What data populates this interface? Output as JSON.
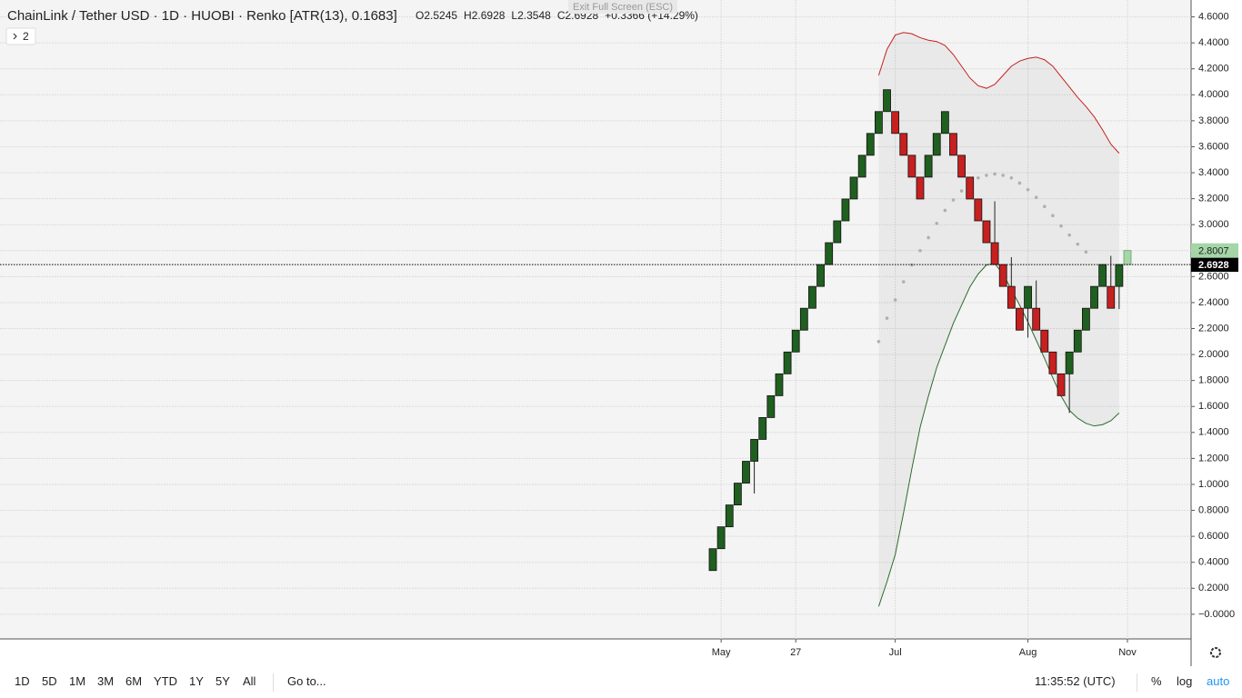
{
  "header": {
    "title": "ChainLink / Tether USD · 1D · HUOBI · Renko [ATR(13), 0.1683]",
    "ohlc": [
      "O2.5245",
      "H2.6928",
      "L2.3548",
      "C2.6928",
      "+0.3366 (+14.29%)"
    ],
    "tooltip": "Exit Full Screen (ESC)",
    "indicator_count": "2"
  },
  "chart_data": {
    "type": "renko",
    "up_color": "#1f5f1f",
    "down_color": "#c62020",
    "projection_color": "#a5d6a7",
    "bricks": [
      {
        "open": 0.3366,
        "close": 0.5049
      },
      {
        "open": 0.5049,
        "close": 0.6732
      },
      {
        "open": 0.6732,
        "close": 0.8415
      },
      {
        "open": 0.8415,
        "close": 1.0098
      },
      {
        "open": 1.0098,
        "close": 1.1781
      },
      {
        "open": 1.1781,
        "close": 1.3464,
        "low": 0.93
      },
      {
        "open": 1.3464,
        "close": 1.5147
      },
      {
        "open": 1.5147,
        "close": 1.683
      },
      {
        "open": 1.683,
        "close": 1.8513
      },
      {
        "open": 1.8513,
        "close": 2.0196
      },
      {
        "open": 2.0196,
        "close": 2.1879
      },
      {
        "open": 2.1879,
        "close": 2.3562
      },
      {
        "open": 2.3562,
        "close": 2.5245
      },
      {
        "open": 2.5245,
        "close": 2.6928
      },
      {
        "open": 2.6928,
        "close": 2.8611
      },
      {
        "open": 2.8611,
        "close": 3.0294
      },
      {
        "open": 3.0294,
        "close": 3.1977
      },
      {
        "open": 3.1977,
        "close": 3.366
      },
      {
        "open": 3.366,
        "close": 3.5343
      },
      {
        "open": 3.5343,
        "close": 3.7026
      },
      {
        "open": 3.7026,
        "close": 3.8709
      },
      {
        "open": 3.8709,
        "close": 4.0392
      },
      {
        "open": 3.8709,
        "close": 3.7026
      },
      {
        "open": 3.7026,
        "close": 3.5343
      },
      {
        "open": 3.5343,
        "close": 3.366
      },
      {
        "open": 3.366,
        "close": 3.1977
      },
      {
        "open": 3.366,
        "close": 3.5343
      },
      {
        "open": 3.5343,
        "close": 3.7026
      },
      {
        "open": 3.7026,
        "close": 3.8709
      },
      {
        "open": 3.7026,
        "close": 3.5343
      },
      {
        "open": 3.5343,
        "close": 3.366
      },
      {
        "open": 3.366,
        "close": 3.1977
      },
      {
        "open": 3.1977,
        "close": 3.0294
      },
      {
        "open": 3.0294,
        "close": 2.8611
      },
      {
        "open": 2.8611,
        "close": 2.6928,
        "high": 3.18
      },
      {
        "open": 2.6928,
        "close": 2.5245
      },
      {
        "open": 2.5245,
        "close": 2.3562,
        "high": 2.75
      },
      {
        "open": 2.3562,
        "close": 2.1879
      },
      {
        "open": 2.3562,
        "close": 2.5245,
        "low": 2.13
      },
      {
        "open": 2.3562,
        "close": 2.1879,
        "high": 2.57
      },
      {
        "open": 2.1879,
        "close": 2.0196
      },
      {
        "open": 2.0196,
        "close": 1.8513
      },
      {
        "open": 1.8513,
        "close": 1.683
      },
      {
        "open": 1.8513,
        "close": 2.0196,
        "low": 1.55
      },
      {
        "open": 2.0196,
        "close": 2.1879
      },
      {
        "open": 2.1879,
        "close": 2.3562
      },
      {
        "open": 2.3562,
        "close": 2.5245
      },
      {
        "open": 2.5245,
        "close": 2.6928
      },
      {
        "open": 2.5245,
        "close": 2.3562,
        "high": 2.76
      },
      {
        "open": 2.5245,
        "close": 2.6928,
        "low": 2.35
      }
    ],
    "projection": {
      "open": 2.6928,
      "close": 2.8007
    },
    "last_price": 2.6928,
    "bands": [
      {
        "color": "#c62020",
        "style": "line",
        "x": [
          20,
          21,
          22,
          23,
          24,
          25,
          26,
          27,
          28,
          29,
          30,
          31,
          32,
          33,
          34,
          35,
          36,
          37,
          38,
          39,
          40,
          41,
          42,
          43,
          44,
          45,
          46,
          47,
          48,
          49
        ],
        "values": [
          4.15,
          4.35,
          4.46,
          4.48,
          4.47,
          4.44,
          4.42,
          4.41,
          4.38,
          4.31,
          4.22,
          4.13,
          4.07,
          4.05,
          4.08,
          4.15,
          4.22,
          4.26,
          4.28,
          4.29,
          4.27,
          4.22,
          4.14,
          4.06,
          3.98,
          3.91,
          3.83,
          3.73,
          3.62,
          3.55
        ]
      },
      {
        "color": "#2e6b2e",
        "style": "line",
        "x": [
          20,
          21,
          22,
          23,
          24,
          25,
          26,
          27,
          28,
          29,
          30,
          31,
          32,
          33,
          34,
          35,
          36,
          37,
          38,
          39,
          40,
          41,
          42,
          43,
          44,
          45,
          46,
          47,
          48,
          49
        ],
        "values": [
          0.06,
          0.25,
          0.46,
          0.78,
          1.12,
          1.44,
          1.68,
          1.9,
          2.07,
          2.24,
          2.38,
          2.52,
          2.62,
          2.69,
          2.7,
          2.62,
          2.5,
          2.38,
          2.25,
          2.11,
          1.97,
          1.82,
          1.68,
          1.57,
          1.51,
          1.47,
          1.45,
          1.46,
          1.49,
          1.55
        ]
      },
      {
        "color": "#b0b0b0",
        "style": "dots",
        "x": [
          20,
          21,
          22,
          23,
          24,
          25,
          26,
          27,
          28,
          29,
          30,
          31,
          32,
          33,
          34,
          35,
          36,
          37,
          38,
          39,
          40,
          41,
          42,
          43,
          44,
          45
        ],
        "values": [
          2.1,
          2.28,
          2.42,
          2.56,
          2.69,
          2.8,
          2.9,
          3.01,
          3.11,
          3.19,
          3.26,
          3.32,
          3.36,
          3.38,
          3.39,
          3.38,
          3.36,
          3.32,
          3.27,
          3.21,
          3.14,
          3.07,
          2.99,
          2.92,
          2.85,
          2.79
        ]
      }
    ],
    "ylim": [
      -0.19,
      4.73
    ],
    "yticks": [
      {
        "value": 0,
        "label": "−0.0000"
      },
      {
        "value": 0.2,
        "label": "0.2000"
      },
      {
        "value": 0.4,
        "label": "0.4000"
      },
      {
        "value": 0.6,
        "label": "0.6000"
      },
      {
        "value": 0.8,
        "label": "0.8000"
      },
      {
        "value": 1,
        "label": "1.0000"
      },
      {
        "value": 1.2,
        "label": "1.2000"
      },
      {
        "value": 1.4,
        "label": "1.4000"
      },
      {
        "value": 1.6,
        "label": "1.6000"
      },
      {
        "value": 1.8,
        "label": "1.8000"
      },
      {
        "value": 2,
        "label": "2.0000"
      },
      {
        "value": 2.2,
        "label": "2.2000"
      },
      {
        "value": 2.4,
        "label": "2.4000"
      },
      {
        "value": 2.6,
        "label": "2.6000"
      },
      {
        "value": 2.8,
        "label": "2.8000"
      },
      {
        "value": 3,
        "label": "3.0000"
      },
      {
        "value": 3.2,
        "label": "3.2000"
      },
      {
        "value": 3.4,
        "label": "3.4000"
      },
      {
        "value": 3.6,
        "label": "3.6000"
      },
      {
        "value": 3.8,
        "label": "3.8000"
      },
      {
        "value": 4,
        "label": "4.0000"
      },
      {
        "value": 4.2,
        "label": "4.2000"
      },
      {
        "value": 4.4,
        "label": "4.4000"
      },
      {
        "value": 4.6,
        "label": "4.6000"
      }
    ],
    "xticks": [
      {
        "value": 1,
        "label": "May"
      },
      {
        "value": 10,
        "label": "27"
      },
      {
        "value": 22,
        "label": "Jul"
      },
      {
        "value": 38,
        "label": "Aug"
      },
      {
        "value": 50,
        "label": "Nov"
      }
    ],
    "grid": true
  },
  "toolbar": {
    "ranges": [
      "1D",
      "5D",
      "1M",
      "3M",
      "6M",
      "YTD",
      "1Y",
      "5Y",
      "All"
    ],
    "goto": "Go to...",
    "clock": "11:35:52 (UTC)",
    "options": [
      "%",
      "log",
      "auto"
    ]
  }
}
